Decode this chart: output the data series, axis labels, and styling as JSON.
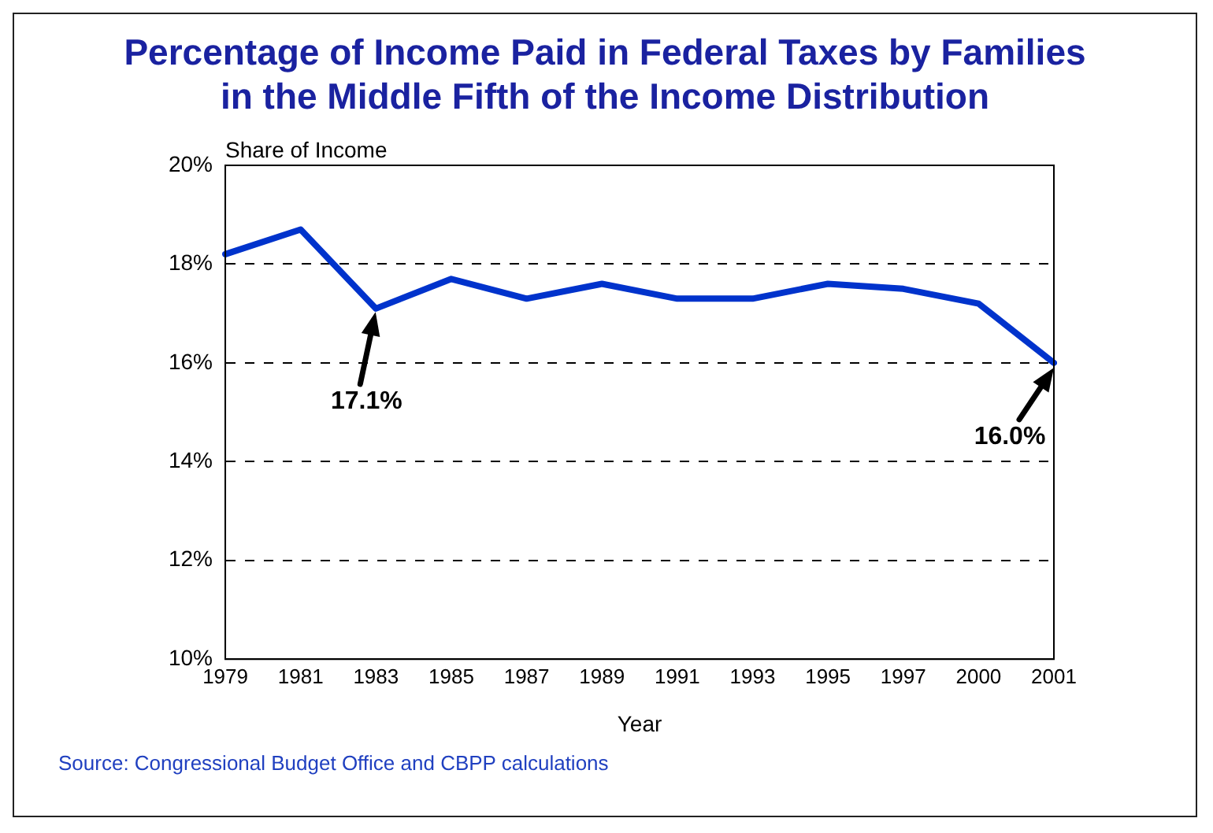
{
  "chart_data": {
    "type": "line",
    "title": "Percentage of Income Paid in Federal Taxes by Families in the Middle Fifth of the Income Distribution",
    "xlabel": "Year",
    "ylabel": "Share of Income",
    "categories": [
      "1979",
      "1981",
      "1983",
      "1985",
      "1987",
      "1989",
      "1991",
      "1993",
      "1995",
      "1997",
      "2000",
      "2001"
    ],
    "series": [
      {
        "color": "#0033cc",
        "values": [
          18.2,
          18.7,
          17.1,
          17.7,
          17.3,
          17.6,
          17.3,
          17.3,
          17.6,
          17.5,
          17.2,
          16.0
        ]
      }
    ],
    "ylim": [
      10,
      20
    ],
    "yticks": [
      {
        "value": 10,
        "label": "10%"
      },
      {
        "value": 12,
        "label": "12%"
      },
      {
        "value": 14,
        "label": "14%"
      },
      {
        "value": 16,
        "label": "16%"
      },
      {
        "value": 18,
        "label": "18%"
      },
      {
        "value": 20,
        "label": "20%"
      }
    ],
    "grid": "y",
    "legend": false,
    "annotations": [
      {
        "text": "17.1%",
        "x": "1983",
        "y": 17.1
      },
      {
        "text": "16.0%",
        "x": "2001",
        "y": 16.0
      },
      "Source: Congressional Budget Office and CBPP calculations"
    ]
  }
}
